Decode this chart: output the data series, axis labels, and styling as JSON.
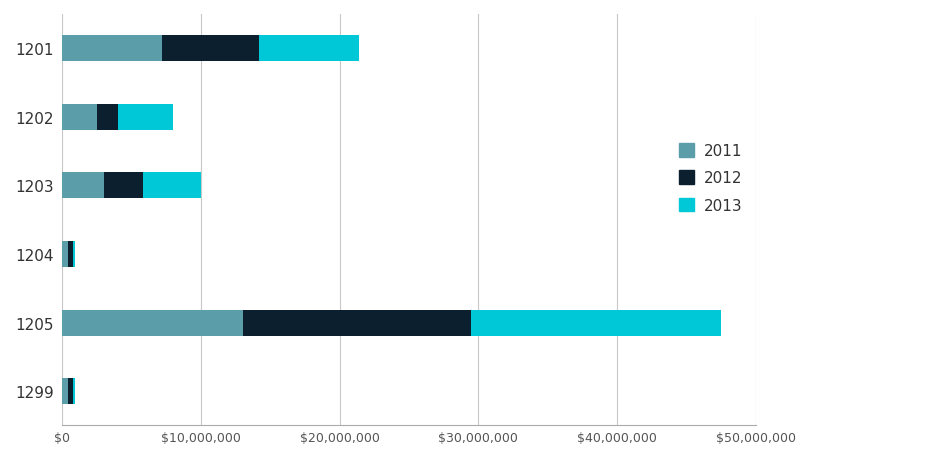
{
  "categories": [
    "1201",
    "1202",
    "1203",
    "1204",
    "1205",
    "1299"
  ],
  "series": {
    "2011": [
      7200000,
      2500000,
      3000000,
      450000,
      13000000,
      450000
    ],
    "2012": [
      7000000,
      1500000,
      2800000,
      350000,
      16500000,
      350000
    ],
    "2013": [
      7200000,
      4000000,
      4200000,
      100000,
      18000000,
      100000
    ]
  },
  "colors": {
    "2011": "#5b9eaa",
    "2012": "#0b1f2e",
    "2013": "#00c8d7"
  },
  "legend_labels": [
    "2011",
    "2012",
    "2013"
  ],
  "xlim": [
    0,
    50000000
  ],
  "xticks": [
    0,
    10000000,
    20000000,
    30000000,
    40000000,
    50000000
  ],
  "xtick_labels": [
    "$0",
    "$10,000,000",
    "$20,000,000",
    "$30,000,000",
    "$40,000,000",
    "$50,000,000"
  ],
  "background_color": "#ffffff",
  "bar_height": 0.38,
  "grid_color": "#c8c8c8",
  "legend_fontsize": 11,
  "ytick_fontsize": 11,
  "xtick_fontsize": 9
}
